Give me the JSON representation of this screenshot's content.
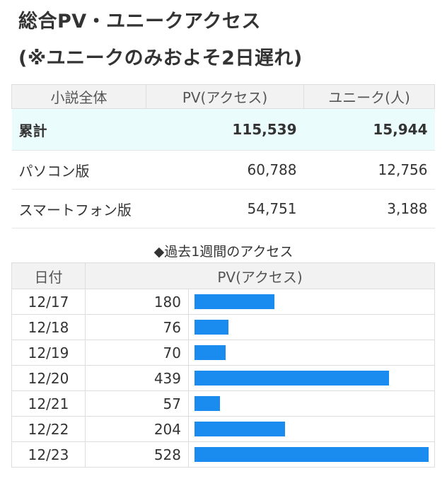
{
  "title": {
    "line1": "総合PV・ユニークアクセス",
    "line2": "(※ユニークのみおよそ2日遅れ)"
  },
  "summary": {
    "headers": [
      "小説全体",
      "PV(アクセス)",
      "ユニーク(人)"
    ],
    "rows": [
      {
        "label": "累計",
        "pv": "115,539",
        "unique": "15,944"
      },
      {
        "label": "パソコン版",
        "pv": "60,788",
        "unique": "12,756"
      },
      {
        "label": "スマートフォン版",
        "pv": "54,751",
        "unique": "3,188"
      }
    ]
  },
  "weekly": {
    "heading": "◆過去1週間のアクセス",
    "headers": {
      "date": "日付",
      "pv": "PV(アクセス)"
    },
    "rows": [
      {
        "date": "12/17",
        "pv": "180",
        "value": 180
      },
      {
        "date": "12/18",
        "pv": "76",
        "value": 76
      },
      {
        "date": "12/19",
        "pv": "70",
        "value": 70
      },
      {
        "date": "12/20",
        "pv": "439",
        "value": 439
      },
      {
        "date": "12/21",
        "pv": "57",
        "value": 57
      },
      {
        "date": "12/22",
        "pv": "204",
        "value": 204
      },
      {
        "date": "12/23",
        "pv": "528",
        "value": 528
      }
    ],
    "bar_color": "#1a8cf0"
  },
  "colors": {
    "total_row_bg": "#eafcfc",
    "header_bg": "#f2f2f2"
  }
}
